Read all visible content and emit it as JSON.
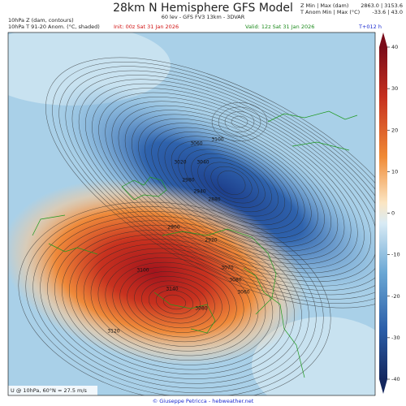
{
  "header": {
    "title": "28km N Hemisphere GFS Model",
    "subtitle": "60 lev - GFS FV3 13km - 3DVAR",
    "field_z": "10hPa Z (dam, contours)",
    "field_t": "10hPa T 91-20 Anom. (°C, shaded)",
    "init": "Init: 00z Sat 31 Jan 2026",
    "valid": "Valid: 12z Sat 31 Jan 2026",
    "lead": "T+012 h",
    "z_label": "Z Min | Max (dam)",
    "z_values": "2863.0 | 3153.6",
    "t_label": "T Anom Min | Max (°C)",
    "t_values": "-33.6 | 43.0"
  },
  "map": {
    "contour_labels": [
      "3100",
      "3060",
      "3040",
      "3020",
      "2980",
      "2940",
      "2880",
      "2900",
      "2920",
      "3070",
      "3080",
      "3140",
      "3100",
      "3120",
      "3080",
      "3060"
    ],
    "wind_note": "U @ 10hPa, 60°N = 27.5 m/s"
  },
  "colorbar": {
    "lim": [
      -40,
      40
    ],
    "ticks": [
      40,
      30,
      20,
      10,
      0,
      -10,
      -20,
      -30,
      -40
    ]
  },
  "footer": {
    "credit": "© Giuseppe Petricca - hebweather.net"
  }
}
